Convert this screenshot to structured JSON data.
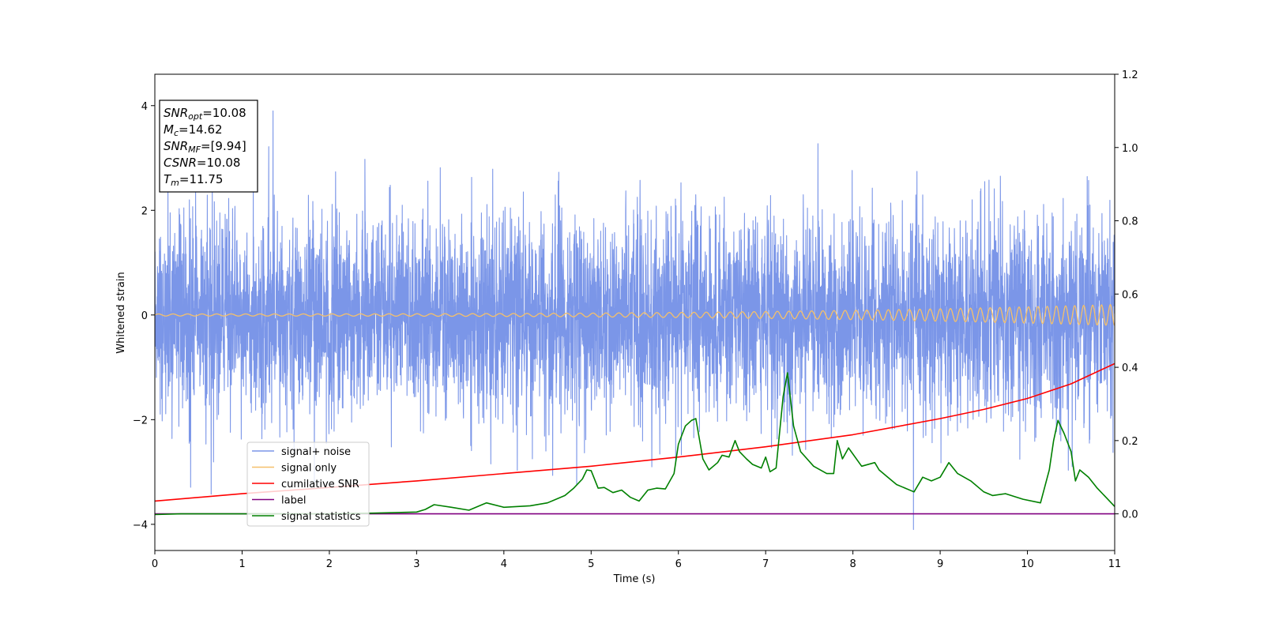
{
  "chart_data": {
    "type": "line",
    "title": "",
    "xlabel": "Time (s)",
    "ylabel": "Whitened strain",
    "ylabel_right": "",
    "xlim": [
      0,
      11
    ],
    "ylim": [
      -4.5,
      4.6
    ],
    "ylim_right": [
      -0.1,
      1.2
    ],
    "xticks": [
      0,
      1,
      2,
      3,
      4,
      5,
      6,
      7,
      8,
      9,
      10,
      11
    ],
    "yticks": [
      -4,
      -2,
      0,
      2,
      4
    ],
    "yticks_right": [
      0.0,
      0.2,
      0.4,
      0.6,
      0.8,
      1.0,
      1.2
    ],
    "grid": false,
    "legend_position": "lower-left",
    "info_box": {
      "position": "top-left",
      "lines": [
        {
          "base": "SNR",
          "sub": "opt",
          "value": "=10.08"
        },
        {
          "base": "M",
          "sub": "c",
          "value": "=14.62"
        },
        {
          "base": "SNR",
          "sub": "MF",
          "value": "=[9.94]"
        },
        {
          "base": "CSNR",
          "sub": "",
          "value": "=10.08"
        },
        {
          "base": "T",
          "sub": "m",
          "value": "=11.75"
        }
      ]
    },
    "series": [
      {
        "name": "signal+ noise",
        "axis": "left",
        "color": "#7b96e8",
        "kind": "noise",
        "std": 0.95,
        "max": 3.9,
        "min": -4.1
      },
      {
        "name": "signal only",
        "axis": "left",
        "color": "#f5c06a",
        "kind": "chirp",
        "amplitude_start": 0.02,
        "amplitude_end": 0.2
      },
      {
        "name": "cumilative SNR",
        "axis": "right",
        "color": "#ff0000",
        "kind": "line",
        "x": [
          0,
          1,
          2,
          3,
          4,
          5,
          6,
          7,
          8,
          9,
          9.5,
          10,
          10.5,
          11
        ],
        "y": [
          0.035,
          0.055,
          0.072,
          0.09,
          0.11,
          0.13,
          0.155,
          0.183,
          0.216,
          0.26,
          0.285,
          0.315,
          0.355,
          0.41
        ]
      },
      {
        "name": "label",
        "axis": "right",
        "color": "#800080",
        "kind": "line",
        "x": [
          0,
          11
        ],
        "y": [
          0.0,
          0.0
        ]
      },
      {
        "name": "signal statistics",
        "axis": "right",
        "color": "#008000",
        "kind": "line",
        "x": [
          0,
          0.3,
          1.0,
          2.0,
          2.5,
          3.0,
          3.1,
          3.2,
          3.4,
          3.6,
          3.75,
          3.8,
          4.0,
          4.3,
          4.5,
          4.7,
          4.8,
          4.9,
          4.95,
          5.0,
          5.08,
          5.15,
          5.25,
          5.35,
          5.45,
          5.55,
          5.65,
          5.75,
          5.85,
          5.95,
          6.0,
          6.08,
          6.15,
          6.2,
          6.28,
          6.35,
          6.45,
          6.5,
          6.58,
          6.65,
          6.7,
          6.78,
          6.85,
          6.95,
          7.0,
          7.05,
          7.12,
          7.2,
          7.25,
          7.32,
          7.4,
          7.55,
          7.7,
          7.78,
          7.82,
          7.88,
          7.95,
          8.1,
          8.25,
          8.3,
          8.4,
          8.5,
          8.6,
          8.7,
          8.8,
          8.9,
          9.0,
          9.1,
          9.2,
          9.35,
          9.5,
          9.6,
          9.75,
          9.95,
          10.15,
          10.25,
          10.3,
          10.35,
          10.42,
          10.5,
          10.55,
          10.6,
          10.7,
          10.8,
          10.9,
          11.0
        ],
        "y": [
          -0.002,
          0.0,
          0.0,
          0.0,
          0.002,
          0.005,
          0.012,
          0.025,
          0.018,
          0.01,
          0.025,
          0.03,
          0.018,
          0.022,
          0.03,
          0.05,
          0.07,
          0.095,
          0.12,
          0.118,
          0.07,
          0.072,
          0.058,
          0.065,
          0.045,
          0.035,
          0.065,
          0.07,
          0.068,
          0.11,
          0.19,
          0.24,
          0.255,
          0.26,
          0.15,
          0.12,
          0.14,
          0.16,
          0.155,
          0.2,
          0.17,
          0.15,
          0.135,
          0.125,
          0.155,
          0.115,
          0.125,
          0.32,
          0.385,
          0.24,
          0.17,
          0.13,
          0.11,
          0.11,
          0.2,
          0.15,
          0.18,
          0.13,
          0.14,
          0.12,
          0.1,
          0.08,
          0.07,
          0.06,
          0.1,
          0.09,
          0.1,
          0.14,
          0.11,
          0.09,
          0.06,
          0.05,
          0.055,
          0.04,
          0.03,
          0.12,
          0.2,
          0.255,
          0.22,
          0.17,
          0.09,
          0.12,
          0.1,
          0.07,
          0.045,
          0.02
        ]
      }
    ]
  }
}
